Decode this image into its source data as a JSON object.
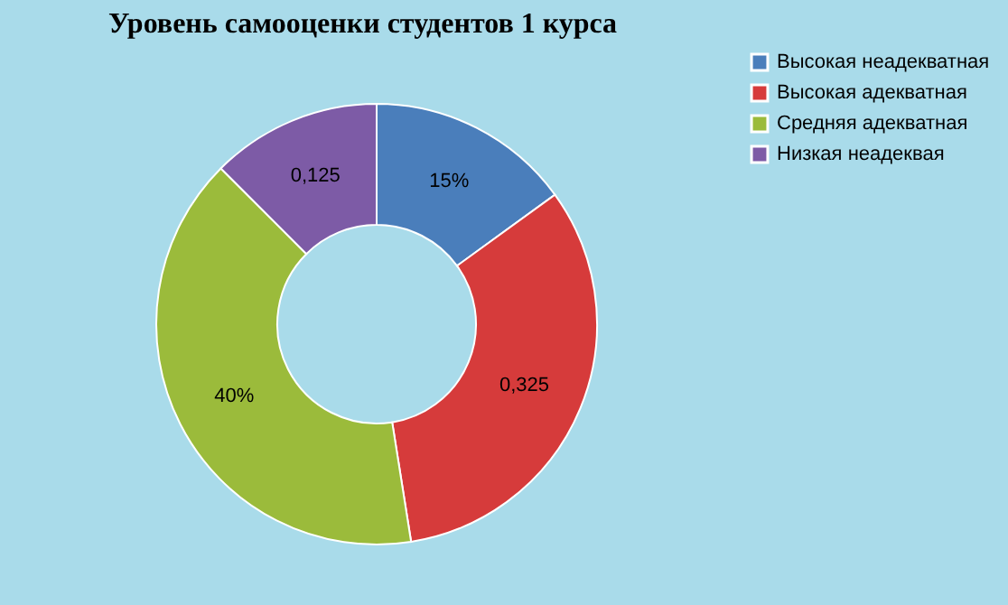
{
  "chart_data": {
    "type": "donut",
    "title": "Уровень самооценки студентов 1 курса",
    "categories": [
      "Высокая неадекватная",
      "Высокая адекватная",
      "Средняя адекватная",
      "Низкая неадеквая"
    ],
    "values": [
      0.15,
      0.325,
      0.4,
      0.125
    ],
    "value_labels": [
      "15%",
      "0,325",
      "40%",
      "0,125"
    ],
    "colors": [
      "#4a7ebb",
      "#d63b3b",
      "#9bbb3b",
      "#7d5ba6"
    ],
    "legend": "right"
  }
}
